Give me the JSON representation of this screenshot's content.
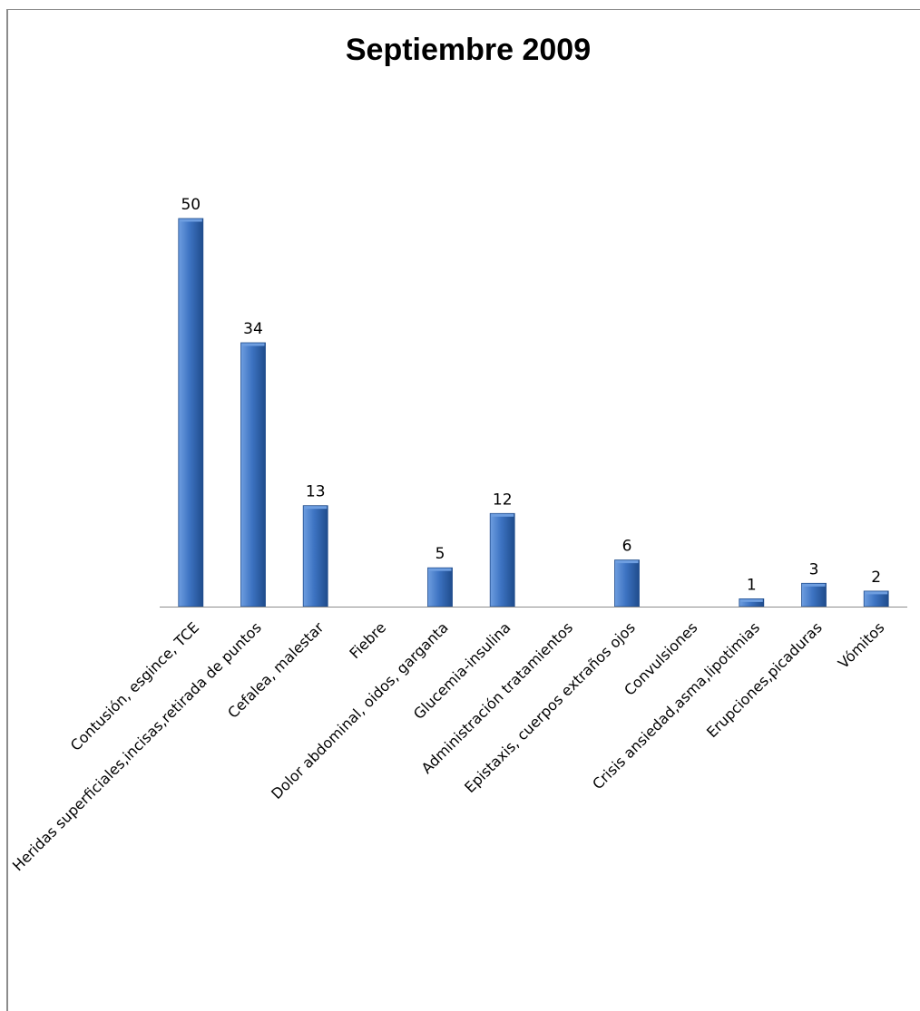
{
  "chart_data": {
    "type": "bar",
    "title": "Septiembre 2009",
    "xlabel": "",
    "ylabel": "",
    "categories": [
      "Contusión, esgince, TCE",
      "Heridas superficiales,incisas,retirada de puntos",
      "Cefalea, malestar",
      "Fiebre",
      "Dolor abdominal, oidos, garganta",
      "Glucemia-insulina",
      "Administración tratamientos",
      "Epistaxis, cuerpos extraños ojos",
      "Convulsiones",
      "Crisis ansiedad,asma,lipotimias",
      "Erupciones,picaduras",
      "Vómitos"
    ],
    "values": [
      50,
      34,
      13,
      0,
      5,
      12,
      0,
      6,
      0,
      1,
      3,
      2
    ],
    "data_labels": [
      "50",
      "34",
      "13",
      "",
      "5",
      "12",
      "",
      "6",
      "",
      "1",
      "3",
      "2"
    ],
    "ylim": [
      0,
      50
    ],
    "grid": false,
    "legend": "none",
    "colors": {
      "bar_main": "#3d73c2",
      "bar_light": "#6e9ee0",
      "bar_dark": "#1f4c8c",
      "axis": "#8c8c8c",
      "frame": "#8c8c8c"
    }
  }
}
